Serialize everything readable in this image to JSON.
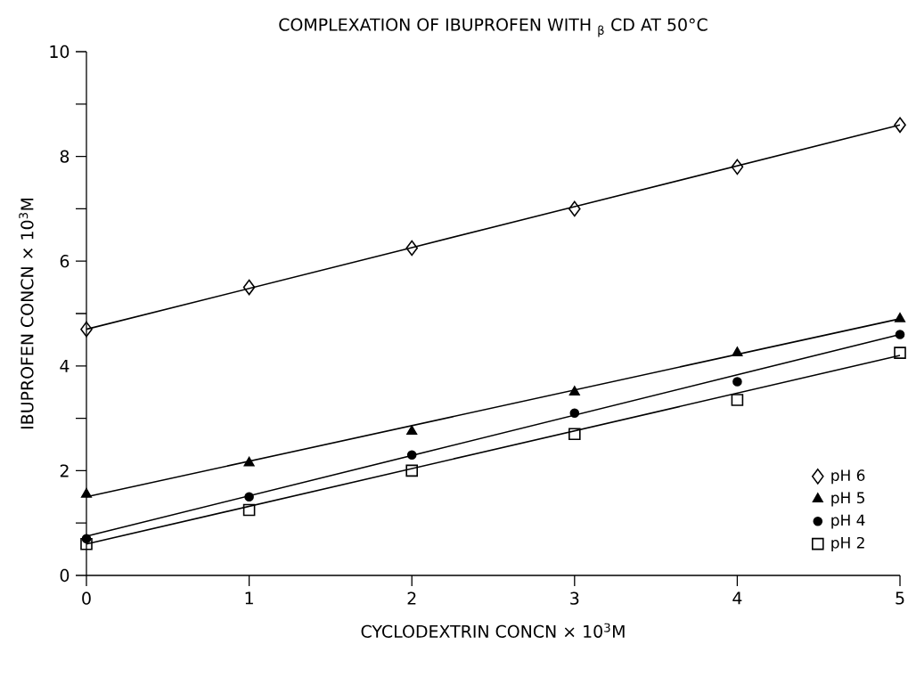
{
  "chart_data": {
    "type": "scatter",
    "title": "COMPLEXATION OF IBUPROFEN WITH $_{β}$ CD AT 50°C",
    "xlabel": "CYCLODEXTRIN CONCN × 10$^{3}$M",
    "ylabel": "IBUPROFEN CONCN × 10$^{3}$M",
    "x": [
      0,
      1,
      2,
      3,
      4,
      5
    ],
    "xlim": [
      0,
      5
    ],
    "xticks": [
      0,
      1,
      2,
      3,
      4,
      5
    ],
    "ylim": [
      0,
      10
    ],
    "yticks": [
      0,
      {
        "value": 1,
        "label": null
      },
      2,
      {
        "value": 3,
        "label": null
      },
      4,
      {
        "value": 5,
        "label": null
      },
      6,
      {
        "value": 7,
        "label": null
      },
      8,
      {
        "value": 9,
        "label": null
      },
      10
    ],
    "legend": "bottom right",
    "grid": false,
    "series": [
      {
        "name": "pH 6",
        "color": "#000000",
        "marker": "diamond",
        "values": [
          4.7,
          5.5,
          6.25,
          7.0,
          7.8,
          8.6
        ]
      },
      {
        "name": "pH 5",
        "color": "#000000",
        "marker": "triangle",
        "values": [
          1.55,
          2.15,
          2.75,
          3.5,
          4.25,
          4.9
        ]
      },
      {
        "name": "pH 4",
        "color": "#000000",
        "marker": "circle",
        "values": [
          0.7,
          1.5,
          2.3,
          3.1,
          3.7,
          4.6
        ]
      },
      {
        "name": "pH 2",
        "color": "#000000",
        "marker": "square",
        "values": [
          0.6,
          1.25,
          2.0,
          2.7,
          3.35,
          4.25
        ]
      },
      {
        "type": "line",
        "color": "#000000",
        "marker": "none",
        "line_style": "solid",
        "values": [
          4.7,
          5.48,
          6.26,
          7.04,
          7.82,
          8.6
        ]
      },
      {
        "type": "line",
        "color": "#000000",
        "marker": "none",
        "line_style": "solid",
        "values": [
          1.5,
          2.18,
          2.86,
          3.54,
          4.22,
          4.9
        ]
      },
      {
        "type": "line",
        "color": "#000000",
        "marker": "none",
        "line_style": "solid",
        "values": [
          0.75,
          1.52,
          2.29,
          3.06,
          3.83,
          4.6
        ]
      },
      {
        "type": "line",
        "color": "#000000",
        "marker": "none",
        "line_style": "solid",
        "values": [
          0.6,
          1.32,
          2.04,
          2.76,
          3.48,
          4.2
        ]
      }
    ]
  }
}
